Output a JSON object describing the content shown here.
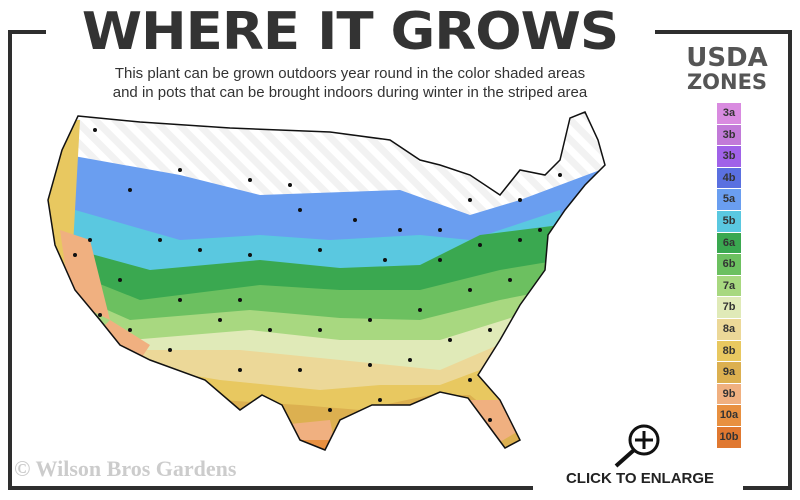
{
  "header": {
    "title": "WHERE IT GROWS",
    "subtitle_line1": "This plant can be grown outdoors year round in the color shaded areas",
    "subtitle_line2": "and in pots that can be brought indoors during winter in the striped area"
  },
  "legend": {
    "title_line1": "USDA",
    "title_line2": "ZONES",
    "zones": [
      {
        "label": "3a",
        "color": "#d98be0"
      },
      {
        "label": "3b",
        "color": "#c27ad8"
      },
      {
        "label": "3b",
        "color": "#a062e8"
      },
      {
        "label": "4b",
        "color": "#5a70e0"
      },
      {
        "label": "5a",
        "color": "#6a9ef0"
      },
      {
        "label": "5b",
        "color": "#5ac8e0"
      },
      {
        "label": "6a",
        "color": "#3aa850"
      },
      {
        "label": "6b",
        "color": "#6cc060"
      },
      {
        "label": "7a",
        "color": "#a8d880"
      },
      {
        "label": "7b",
        "color": "#e0eab8"
      },
      {
        "label": "8a",
        "color": "#ecd898"
      },
      {
        "label": "8b",
        "color": "#e8c860"
      },
      {
        "label": "9a",
        "color": "#dcb050"
      },
      {
        "label": "9b",
        "color": "#f0b080"
      },
      {
        "label": "10a",
        "color": "#e89040"
      },
      {
        "label": "10b",
        "color": "#e07830"
      }
    ]
  },
  "footer": {
    "watermark": "© Wilson Bros Gardens",
    "enlarge_label": "CLICK TO ENLARGE",
    "enlarge_icon": "magnify-plus-icon"
  }
}
